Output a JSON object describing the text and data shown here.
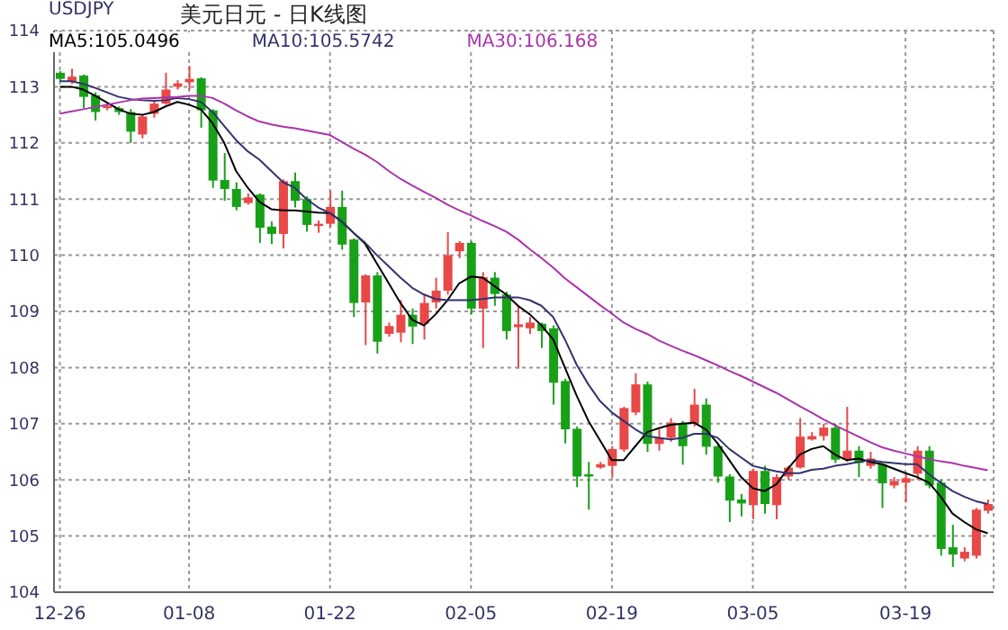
{
  "chart_data": {
    "type": "candlestick",
    "title": "美元日元 - 日K线图",
    "subtitle": "USDJPY",
    "categories": [
      "12-26",
      null,
      null,
      null,
      null,
      null,
      null,
      null,
      null,
      null,
      null,
      "01-08",
      null,
      null,
      null,
      null,
      null,
      null,
      null,
      null,
      null,
      null,
      null,
      "01-22",
      null,
      null,
      null,
      null,
      null,
      null,
      null,
      null,
      null,
      null,
      null,
      "02-05",
      null,
      null,
      null,
      null,
      null,
      null,
      null,
      null,
      null,
      null,
      null,
      "02-19",
      null,
      null,
      null,
      null,
      null,
      null,
      null,
      null,
      null,
      null,
      null,
      "03-05",
      null,
      null,
      null,
      null,
      null,
      null,
      null,
      null,
      null,
      null,
      null,
      null,
      "03-19",
      null,
      null,
      null,
      null,
      null,
      null,
      null
    ],
    "ohlc": [
      [
        113.25,
        113.28,
        113.1,
        113.14
      ],
      [
        113.1,
        113.32,
        113.05,
        113.18
      ],
      [
        113.2,
        113.22,
        112.62,
        112.82
      ],
      [
        112.85,
        112.9,
        112.4,
        112.55
      ],
      [
        112.62,
        112.7,
        112.58,
        112.66
      ],
      [
        112.62,
        112.65,
        112.5,
        112.55
      ],
      [
        112.55,
        112.6,
        112.0,
        112.2
      ],
      [
        112.15,
        112.5,
        112.08,
        112.47
      ],
      [
        112.52,
        112.75,
        112.45,
        112.7
      ],
      [
        112.7,
        113.25,
        112.68,
        112.95
      ],
      [
        113.0,
        113.12,
        112.95,
        113.06
      ],
      [
        113.08,
        113.37,
        112.95,
        113.14
      ],
      [
        113.15,
        113.17,
        112.27,
        112.58
      ],
      [
        112.58,
        112.6,
        111.2,
        111.33
      ],
      [
        111.34,
        111.82,
        110.97,
        111.18
      ],
      [
        111.18,
        111.3,
        110.8,
        110.86
      ],
      [
        110.93,
        111.1,
        110.9,
        111.03
      ],
      [
        111.08,
        111.1,
        110.22,
        110.49
      ],
      [
        110.51,
        110.6,
        110.2,
        110.38
      ],
      [
        110.38,
        111.35,
        110.12,
        111.32
      ],
      [
        111.32,
        111.47,
        110.85,
        110.97
      ],
      [
        111.0,
        111.05,
        110.42,
        110.54
      ],
      [
        110.52,
        110.62,
        110.4,
        110.56
      ],
      [
        110.56,
        111.15,
        110.5,
        110.86
      ],
      [
        110.86,
        111.15,
        110.1,
        110.19
      ],
      [
        110.28,
        110.3,
        108.9,
        109.15
      ],
      [
        109.16,
        109.66,
        108.4,
        109.64
      ],
      [
        109.64,
        109.7,
        108.25,
        108.46
      ],
      [
        108.6,
        108.8,
        108.55,
        108.74
      ],
      [
        108.62,
        109.2,
        108.45,
        108.94
      ],
      [
        108.94,
        109.05,
        108.42,
        108.73
      ],
      [
        108.78,
        109.3,
        108.5,
        109.15
      ],
      [
        109.16,
        109.6,
        109.05,
        109.37
      ],
      [
        109.37,
        110.41,
        109.3,
        110.0
      ],
      [
        110.07,
        110.25,
        109.95,
        110.22
      ],
      [
        110.22,
        110.25,
        108.95,
        109.05
      ],
      [
        109.05,
        109.7,
        108.35,
        109.61
      ],
      [
        109.6,
        109.7,
        109.1,
        109.31
      ],
      [
        109.3,
        109.35,
        108.5,
        108.65
      ],
      [
        108.72,
        109.1,
        107.98,
        108.77
      ],
      [
        108.7,
        108.9,
        108.6,
        108.8
      ],
      [
        108.78,
        108.8,
        108.35,
        108.65
      ],
      [
        108.7,
        108.75,
        107.34,
        107.73
      ],
      [
        107.76,
        107.8,
        106.65,
        106.9
      ],
      [
        106.91,
        106.95,
        105.87,
        106.06
      ],
      [
        106.1,
        106.32,
        105.47,
        106.06
      ],
      [
        106.22,
        106.32,
        106.2,
        106.28
      ],
      [
        106.25,
        106.6,
        106.05,
        106.55
      ],
      [
        106.54,
        107.3,
        106.5,
        107.28
      ],
      [
        107.2,
        107.9,
        107.15,
        107.7
      ],
      [
        107.7,
        107.75,
        106.5,
        106.64
      ],
      [
        106.64,
        106.9,
        106.52,
        106.75
      ],
      [
        106.75,
        107.1,
        106.68,
        107.02
      ],
      [
        107.0,
        107.05,
        106.27,
        106.6
      ],
      [
        107.0,
        107.62,
        106.95,
        107.34
      ],
      [
        107.34,
        107.45,
        106.45,
        106.59
      ],
      [
        106.6,
        106.65,
        105.95,
        106.06
      ],
      [
        106.06,
        106.1,
        105.25,
        105.63
      ],
      [
        105.65,
        105.75,
        105.35,
        105.58
      ],
      [
        105.55,
        106.2,
        105.3,
        106.16
      ],
      [
        106.16,
        106.25,
        105.4,
        105.57
      ],
      [
        105.55,
        106.1,
        105.3,
        106.05
      ],
      [
        106.06,
        106.25,
        106.0,
        106.22
      ],
      [
        106.22,
        107.1,
        106.2,
        106.77
      ],
      [
        106.72,
        106.85,
        106.7,
        106.78
      ],
      [
        106.78,
        107.0,
        106.7,
        106.93
      ],
      [
        106.93,
        107.0,
        106.3,
        106.36
      ],
      [
        106.36,
        107.3,
        106.32,
        106.52
      ],
      [
        106.52,
        106.6,
        106.05,
        106.3
      ],
      [
        106.25,
        106.5,
        106.2,
        106.38
      ],
      [
        106.28,
        106.3,
        105.5,
        105.94
      ],
      [
        105.9,
        106.05,
        105.85,
        105.98
      ],
      [
        105.95,
        106.1,
        105.6,
        106.03
      ],
      [
        106.11,
        106.6,
        106.0,
        106.52
      ],
      [
        106.52,
        106.6,
        105.85,
        105.9
      ],
      [
        105.95,
        106.0,
        104.65,
        104.77
      ],
      [
        104.8,
        105.2,
        104.45,
        104.67
      ],
      [
        104.6,
        104.8,
        104.55,
        104.72
      ],
      [
        104.65,
        105.5,
        104.6,
        105.47
      ],
      [
        105.45,
        105.65,
        105.4,
        105.57
      ]
    ],
    "colors": [
      "#18a018",
      "#e84848",
      "#18a018",
      "#18a018",
      "#e84848",
      "#18a018",
      "#18a018",
      "#e84848",
      "#e84848",
      "#e84848",
      "#e84848",
      "#e84848",
      "#18a018",
      "#18a018",
      "#18a018",
      "#18a018",
      "#e84848",
      "#18a018",
      "#18a018",
      "#e84848",
      "#18a018",
      "#18a018",
      "#e84848",
      "#e84848",
      "#18a018",
      "#18a018",
      "#e84848",
      "#18a018",
      "#e84848",
      "#e84848",
      "#18a018",
      "#e84848",
      "#e84848",
      "#e84848",
      "#e84848",
      "#18a018",
      "#e84848",
      "#18a018",
      "#18a018",
      "#e84848",
      "#e84848",
      "#18a018",
      "#18a018",
      "#18a018",
      "#18a018",
      "#18a018",
      "#e84848",
      "#e84848",
      "#e84848",
      "#e84848",
      "#18a018",
      "#e84848",
      "#e84848",
      "#18a018",
      "#e84848",
      "#18a018",
      "#18a018",
      "#18a018",
      "#18a018",
      "#e84848",
      "#18a018",
      "#e84848",
      "#e84848",
      "#e84848",
      "#e84848",
      "#e84848",
      "#18a018",
      "#e84848",
      "#18a018",
      "#e84848",
      "#18a018",
      "#e84848",
      "#e84848",
      "#e84848",
      "#18a018",
      "#18a018",
      "#18a018",
      "#e84848",
      "#e84848",
      "#e84848"
    ],
    "series": [
      {
        "type": "line",
        "name": "MA5:105.0496",
        "color": "#000000",
        "values": [
          113.0,
          113.0,
          112.95,
          112.84,
          112.72,
          112.6,
          112.52,
          112.5,
          112.55,
          112.65,
          112.73,
          112.68,
          112.6,
          112.35,
          112.0,
          111.5,
          111.2,
          110.95,
          110.82,
          110.8,
          110.8,
          110.78,
          110.76,
          110.75,
          110.6,
          110.4,
          110.2,
          109.85,
          109.5,
          109.15,
          108.85,
          108.75,
          108.95,
          109.2,
          109.5,
          109.62,
          109.6,
          109.45,
          109.3,
          109.1,
          108.95,
          108.75,
          108.5,
          108.0,
          107.5,
          107.05,
          106.7,
          106.35,
          106.35,
          106.6,
          106.85,
          106.92,
          106.98,
          107.0,
          107.02,
          106.9,
          106.65,
          106.35,
          106.05,
          105.85,
          105.8,
          105.92,
          106.2,
          106.45,
          106.55,
          106.6,
          106.45,
          106.35,
          106.38,
          106.32,
          106.28,
          106.2,
          106.12,
          106.05,
          105.95,
          105.7,
          105.4,
          105.25,
          105.12,
          105.05
        ]
      },
      {
        "type": "line",
        "name": "MA10:105.5742",
        "color": "#33336e",
        "values": [
          113.1,
          113.1,
          113.05,
          112.98,
          112.9,
          112.82,
          112.78,
          112.76,
          112.75,
          112.76,
          112.8,
          112.78,
          112.73,
          112.55,
          112.3,
          112.05,
          111.85,
          111.7,
          111.5,
          111.3,
          111.2,
          111.0,
          110.85,
          110.75,
          110.6,
          110.4,
          110.22,
          110.0,
          109.8,
          109.6,
          109.42,
          109.3,
          109.22,
          109.2,
          109.2,
          109.2,
          109.22,
          109.25,
          109.25,
          109.25,
          109.2,
          109.1,
          108.9,
          108.5,
          108.05,
          107.7,
          107.4,
          107.2,
          107.05,
          106.9,
          106.78,
          106.75,
          106.72,
          106.75,
          106.82,
          106.82,
          106.75,
          106.55,
          106.4,
          106.25,
          106.2,
          106.15,
          106.12,
          106.12,
          106.18,
          106.2,
          106.25,
          106.28,
          106.32,
          106.35,
          106.32,
          106.3,
          106.28,
          106.28,
          106.1,
          105.95,
          105.8,
          105.7,
          105.62,
          105.57
        ]
      },
      {
        "type": "line",
        "name": "MA30:106.168",
        "color": "#aa33aa",
        "values": [
          112.52,
          112.56,
          112.6,
          112.64,
          112.68,
          112.72,
          112.76,
          112.79,
          112.8,
          112.81,
          112.82,
          112.84,
          112.84,
          112.8,
          112.7,
          112.58,
          112.47,
          112.38,
          112.33,
          112.29,
          112.26,
          112.22,
          112.18,
          112.14,
          112.02,
          111.9,
          111.79,
          111.66,
          111.5,
          111.36,
          111.24,
          111.13,
          111.02,
          110.9,
          110.8,
          110.71,
          110.61,
          110.52,
          110.42,
          110.28,
          110.11,
          109.95,
          109.78,
          109.59,
          109.43,
          109.27,
          109.11,
          108.96,
          108.8,
          108.69,
          108.6,
          108.48,
          108.39,
          108.3,
          108.22,
          108.13,
          108.04,
          107.94,
          107.85,
          107.75,
          107.65,
          107.55,
          107.43,
          107.31,
          107.2,
          107.08,
          106.97,
          106.87,
          106.77,
          106.67,
          106.58,
          106.52,
          106.47,
          106.42,
          106.37,
          106.33,
          106.3,
          106.25,
          106.21,
          106.17
        ]
      }
    ],
    "ylim": [
      104,
      114
    ],
    "yticks": [
      104,
      105,
      106,
      107,
      108,
      109,
      110,
      111,
      112,
      113,
      114
    ],
    "grid": true,
    "legend": "top left"
  }
}
